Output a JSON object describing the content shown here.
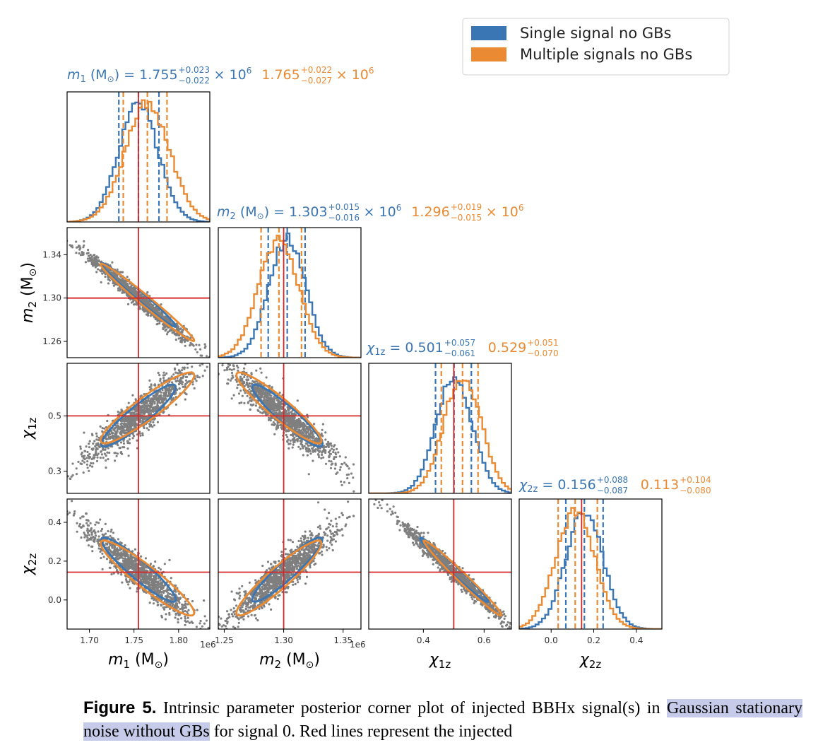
{
  "colors": {
    "single": "#3a76b3",
    "multiple": "#ea8a32",
    "truth": "#d62728",
    "scatter": "#7f7f7f",
    "caption_highlight": "#c5cbe9"
  },
  "legend": [
    {
      "label": "Single signal no GBs",
      "color": "#3a76b3"
    },
    {
      "label": "Multiple signals no GBs",
      "color": "#ea8a32"
    }
  ],
  "params": [
    {
      "symbol": "m",
      "sub": "1",
      "unit": " (M",
      "unit_sub": "⊙",
      "unit_close": ")",
      "axis_label": "m₁ (M⊙)",
      "single": {
        "median": "1.755",
        "plus": "+0.023",
        "minus": "−0.022",
        "suffix": "× 10",
        "exp": "6"
      },
      "multiple": {
        "median": "1.765",
        "plus": "+0.022",
        "minus": "−0.027",
        "suffix": "× 10",
        "exp": "6"
      }
    },
    {
      "symbol": "m",
      "sub": "2",
      "unit": " (M",
      "unit_sub": "⊙",
      "unit_close": ")",
      "axis_label": "m₂ (M⊙)",
      "single": {
        "median": "1.303",
        "plus": "+0.015",
        "minus": "−0.016",
        "suffix": "× 10",
        "exp": "6"
      },
      "multiple": {
        "median": "1.296",
        "plus": "+0.019",
        "minus": "−0.015",
        "suffix": "× 10",
        "exp": "6"
      }
    },
    {
      "symbol": "χ",
      "sub": "1z",
      "unit": "",
      "unit_sub": "",
      "unit_close": "",
      "axis_label": "χ1z",
      "single": {
        "median": "0.501",
        "plus": "+0.057",
        "minus": "−0.061",
        "suffix": "",
        "exp": ""
      },
      "multiple": {
        "median": "0.529",
        "plus": "+0.051",
        "minus": "−0.070",
        "suffix": "",
        "exp": ""
      }
    },
    {
      "symbol": "χ",
      "sub": "2z",
      "unit": "",
      "unit_sub": "",
      "unit_close": "",
      "axis_label": "χ2z",
      "single": {
        "median": "0.156",
        "plus": "+0.088",
        "minus": "−0.087",
        "suffix": "",
        "exp": ""
      },
      "multiple": {
        "median": "0.113",
        "plus": "+0.104",
        "minus": "−0.080",
        "suffix": "",
        "exp": ""
      }
    }
  ],
  "axes": {
    "m1": {
      "range": [
        1675000.0,
        1835000.0
      ],
      "ticks": [
        1.7,
        1.75,
        1.8
      ],
      "tick_labels": [
        "1.70",
        "1.75",
        "1.80"
      ],
      "offset_text": "1e6"
    },
    "m2": {
      "range": [
        1245000.0,
        1365000.0
      ],
      "ticks": [
        1.26,
        1.3,
        1.34
      ],
      "tick_labels_y": [
        "1.26",
        "1.30",
        "1.34"
      ],
      "ticks_x": [
        1.25,
        1.3,
        1.35
      ],
      "tick_labels_x": [
        "1.25",
        "1.30",
        "1.35"
      ],
      "offset_text": "1e6"
    },
    "chi1z": {
      "range": [
        0.22,
        0.69
      ],
      "ticks": [
        0.3,
        0.5
      ],
      "tick_labels_y": [
        "0.3",
        "0.5"
      ],
      "ticks_x": [
        0.4,
        0.6
      ],
      "tick_labels_x": [
        "0.4",
        "0.6"
      ]
    },
    "chi2z": {
      "range": [
        -0.15,
        0.52
      ],
      "ticks": [
        0.0,
        0.2,
        0.4
      ],
      "tick_labels": [
        "0.0",
        "0.2",
        "0.4"
      ]
    }
  },
  "chart_data": {
    "type": "scatter",
    "title": "",
    "description_type": "corner plot",
    "parameters": [
      "m1",
      "m2",
      "chi1z",
      "chi2z"
    ],
    "injected": {
      "m1": 1755000.0,
      "m2": 1300000.0,
      "chi1z": 0.5,
      "chi2z": 0.143
    },
    "series": [
      {
        "name": "Single signal no GBs",
        "medians": {
          "m1": 1755000.0,
          "m2": 1303000.0,
          "chi1z": 0.501,
          "chi2z": 0.156
        },
        "q16": {
          "m1": 1733000.0,
          "m2": 1287000.0,
          "chi1z": 0.44,
          "chi2z": 0.069
        },
        "q84": {
          "m1": 1778000.0,
          "m2": 1318000.0,
          "chi1z": 0.558,
          "chi2z": 0.244
        },
        "sigma": {
          "m1": 22000.0,
          "m2": 15500.0,
          "chi1z": 0.059,
          "chi2z": 0.087
        }
      },
      {
        "name": "Multiple signals no GBs",
        "medians": {
          "m1": 1765000.0,
          "m2": 1296000.0,
          "chi1z": 0.529,
          "chi2z": 0.113
        },
        "q16": {
          "m1": 1738000.0,
          "m2": 1281000.0,
          "chi1z": 0.459,
          "chi2z": 0.033
        },
        "q84": {
          "m1": 1787000.0,
          "m2": 1315000.0,
          "chi1z": 0.58,
          "chi2z": 0.217
        },
        "sigma": {
          "m1": 25000.0,
          "m2": 17000.0,
          "chi1z": 0.061,
          "chi2z": 0.092
        }
      }
    ]
  },
  "caption": {
    "lead": "Figure 5.",
    "text_1": " Intrinsic parameter posterior corner plot of injected BBHx signal(s) in ",
    "highlight": "Gaussian stationary noise without GBs",
    "text_2": " for signal 0. Red lines represent the injected"
  }
}
